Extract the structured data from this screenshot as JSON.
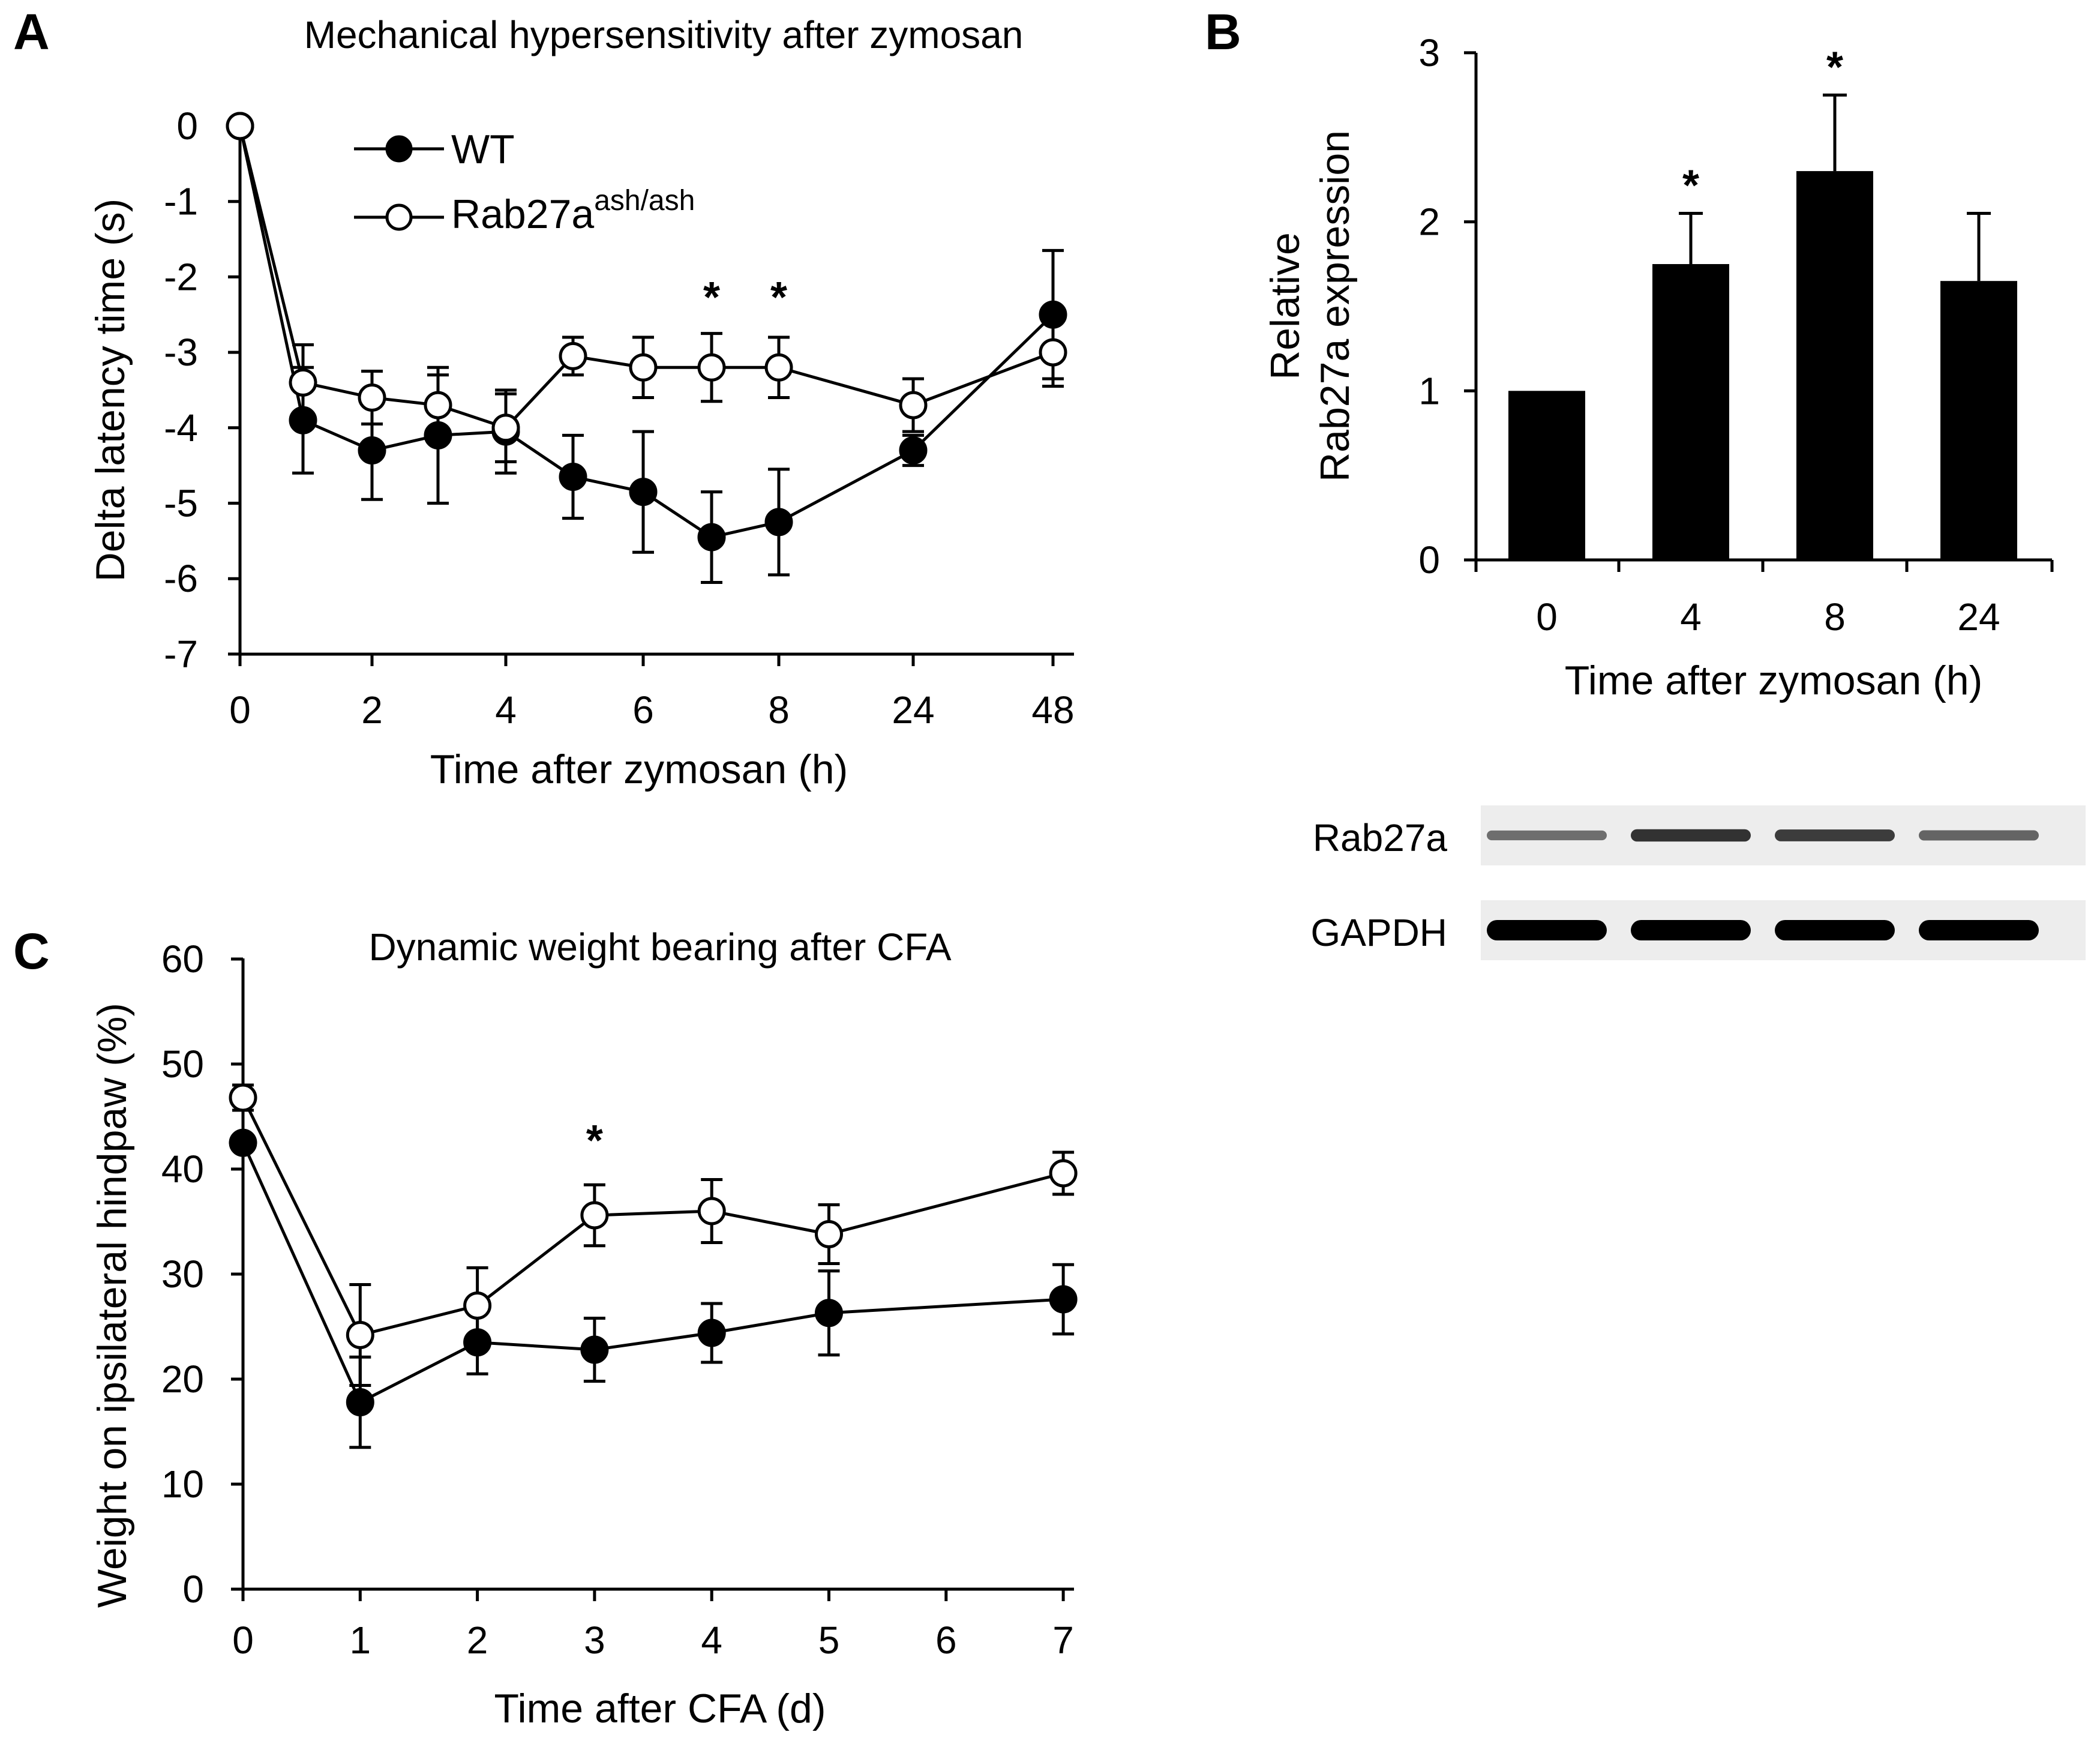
{
  "chart_data": [
    {
      "panel": "A",
      "type": "line",
      "title": "Mechanical hypersensitivity after zymosan",
      "xlabel": "Time after zymosan (h)",
      "ylabel": "Delta latency time (s)",
      "x_tick_labels": [
        "0",
        "2",
        "4",
        "6",
        "8",
        "24",
        "48"
      ],
      "y_tick_labels": [
        "0",
        "-1",
        "-2",
        "-3",
        "-4",
        "-5",
        "-6",
        "-7"
      ],
      "ylim": [
        -7,
        0
      ],
      "x_points": [
        "0",
        "1",
        "2",
        "3",
        "4",
        "5",
        "6",
        "7",
        "8",
        "24",
        "48"
      ],
      "legend_position": "top-left",
      "series": [
        {
          "name": "WT",
          "marker": "filled-circle",
          "color": "#000000",
          "values": [
            0,
            -3.9,
            -4.3,
            -4.1,
            -4.05,
            -4.65,
            -4.85,
            -5.45,
            -5.25,
            -4.3,
            -2.5
          ],
          "errors": [
            0,
            0.7,
            0.65,
            0.9,
            0.55,
            0.55,
            0.8,
            0.6,
            0.7,
            0.2,
            0.85
          ]
        },
        {
          "name": "Rab27a",
          "name_superscript": "ash/ash",
          "marker": "open-circle",
          "color": "#000000",
          "values": [
            0,
            -3.4,
            -3.6,
            -3.7,
            -4.0,
            -3.05,
            -3.2,
            -3.2,
            -3.2,
            -3.7,
            -3.0
          ],
          "errors": [
            0,
            0.5,
            0.35,
            0.4,
            0.45,
            0.25,
            0.4,
            0.45,
            0.4,
            0.35,
            0.45
          ]
        }
      ],
      "annotations": [
        {
          "text": "*",
          "x": "7"
        },
        {
          "text": "*",
          "x": "8"
        }
      ]
    },
    {
      "panel": "B",
      "type": "bar",
      "ylabel_lines": [
        "Relative",
        "Rab27a expression"
      ],
      "xlabel": "Time after zymosan (h)",
      "categories": [
        "0",
        "4",
        "8",
        "24"
      ],
      "values": [
        1.0,
        1.75,
        2.3,
        1.65
      ],
      "errors": [
        0,
        0.3,
        0.45,
        0.4
      ],
      "ylim": [
        0,
        3
      ],
      "y_tick_labels": [
        "0",
        "1",
        "2",
        "3"
      ],
      "bar_color": "#000000",
      "annotations": [
        {
          "text": "*",
          "category": "4"
        },
        {
          "text": "*",
          "category": "8"
        }
      ],
      "blot": {
        "rows": [
          {
            "label": "Rab27a",
            "band_intensity": [
              0.45,
              0.75,
              0.7,
              0.5
            ]
          },
          {
            "label": "GAPDH",
            "band_intensity": [
              1.0,
              1.0,
              1.0,
              1.0
            ]
          }
        ]
      }
    },
    {
      "panel": "C",
      "type": "line",
      "title": "Dynamic weight bearing after CFA",
      "xlabel": "Time after CFA (d)",
      "ylabel": "Weight on ipsilateral hindpaw (%)",
      "x_tick_labels": [
        "0",
        "1",
        "2",
        "3",
        "4",
        "5",
        "6",
        "7"
      ],
      "y_tick_labels": [
        "0",
        "10",
        "20",
        "30",
        "40",
        "50",
        "60"
      ],
      "ylim": [
        0,
        60
      ],
      "x_points": [
        "0",
        "1",
        "2",
        "3",
        "4",
        "5",
        "7"
      ],
      "series": [
        {
          "name": "WT",
          "marker": "filled-circle",
          "color": "#000000",
          "values": [
            42.5,
            17.8,
            23.5,
            22.8,
            24.4,
            26.3,
            27.6
          ],
          "errors": [
            0,
            4.3,
            3.0,
            3.0,
            2.8,
            4.0,
            3.3
          ]
        },
        {
          "name": "Rab27a",
          "marker": "open-circle",
          "color": "#000000",
          "values": [
            46.8,
            24.2,
            27.0,
            35.6,
            36.0,
            33.8,
            39.6
          ],
          "errors": [
            1.2,
            4.8,
            3.6,
            2.9,
            3.0,
            2.8,
            2.0
          ]
        }
      ],
      "annotations": [
        {
          "text": "*",
          "x": "3"
        }
      ]
    }
  ]
}
